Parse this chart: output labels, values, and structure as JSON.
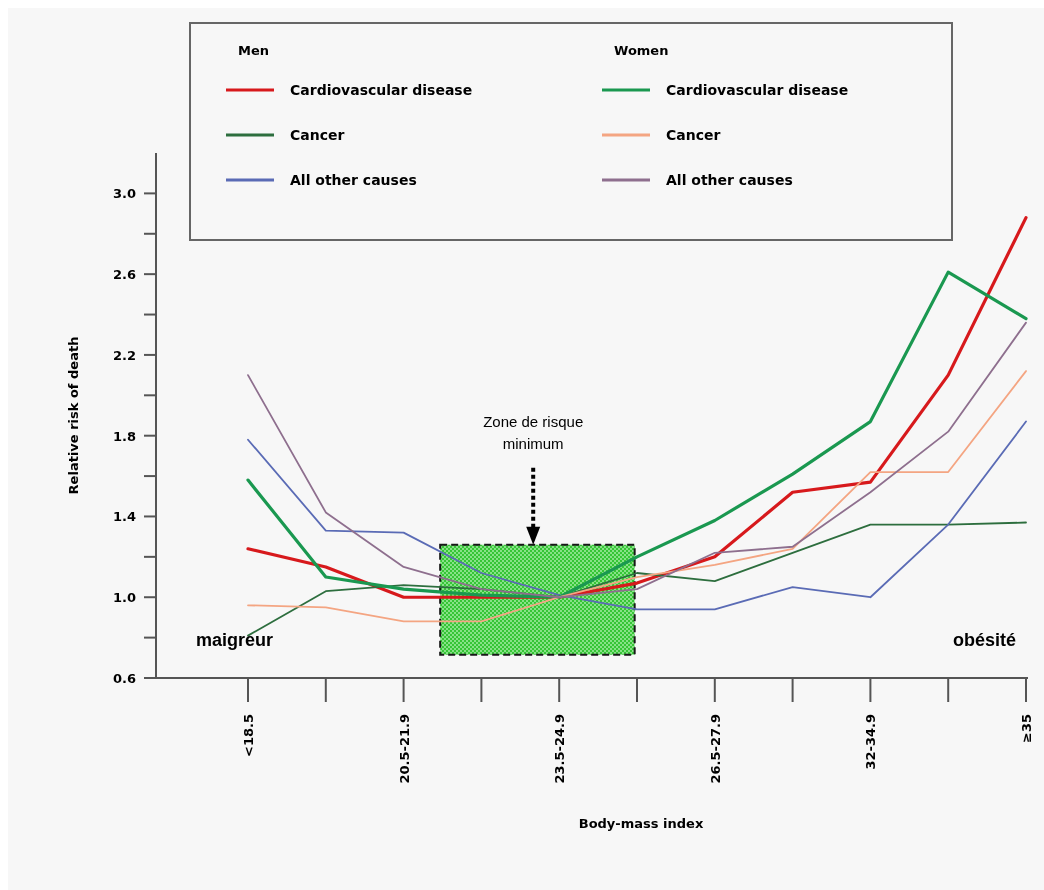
{
  "chart_data": {
    "type": "line",
    "xlabel": "Body-mass index",
    "ylabel": "Relative risk of death",
    "categories": [
      "<18.5",
      null,
      "20.5-21.9",
      null,
      "23.5-24.9",
      null,
      "26.5-27.9",
      null,
      "32-34.9",
      null,
      "≥35"
    ],
    "ylim": [
      0.6,
      3.2
    ],
    "yticks": [
      0.6,
      {
        "value": 0.8,
        "label": null
      },
      {
        "value": 1,
        "label": "1.0"
      },
      {
        "value": 1.2,
        "label": null
      },
      1.4,
      {
        "value": 1.6,
        "label": null
      },
      1.8,
      {
        "value": 2,
        "label": null
      },
      2.2,
      {
        "value": 2.4,
        "label": null
      },
      2.6,
      {
        "value": 2.8,
        "label": null
      },
      {
        "value": 3,
        "label": "3.0"
      }
    ],
    "series": [
      {
        "name": "Cardiovascular disease",
        "color": "#d7191c",
        "values": [
          1.24,
          1.15,
          1.0,
          1.0,
          1.0,
          1.07,
          1.2,
          1.52,
          1.57,
          2.1,
          2.88
        ]
      },
      {
        "name": "Cancer",
        "color": "#2d6e3e",
        "values": [
          0.81,
          1.03,
          1.06,
          1.04,
          1.0,
          1.12,
          1.08,
          1.22,
          1.36,
          1.36,
          1.37
        ]
      },
      {
        "name": "All other causes",
        "color": "#5a6bb5",
        "values": [
          1.78,
          1.33,
          1.32,
          1.12,
          1.01,
          0.94,
          0.94,
          1.05,
          1.0,
          1.36,
          1.87
        ]
      },
      {
        "name": "Cardiovascular disease",
        "color": "#1a9850",
        "values": [
          1.58,
          1.1,
          1.04,
          1.01,
          1.0,
          1.2,
          1.38,
          1.61,
          1.87,
          2.61,
          2.38
        ]
      },
      {
        "name": "Cancer",
        "color": "#f4a582",
        "values": [
          0.96,
          0.95,
          0.88,
          0.88,
          1.0,
          1.1,
          1.16,
          1.24,
          1.62,
          1.62,
          2.12
        ]
      },
      {
        "name": "All other causes",
        "color": "#8e6f8e",
        "values": [
          2.1,
          1.42,
          1.15,
          1.04,
          1.0,
          1.04,
          1.22,
          1.25,
          1.52,
          1.82,
          2.36
        ]
      }
    ],
    "legend": "top",
    "annotations": [
      "Men",
      "Women",
      "Zone de risque minimum",
      "maigreur",
      "obésité"
    ]
  }
}
